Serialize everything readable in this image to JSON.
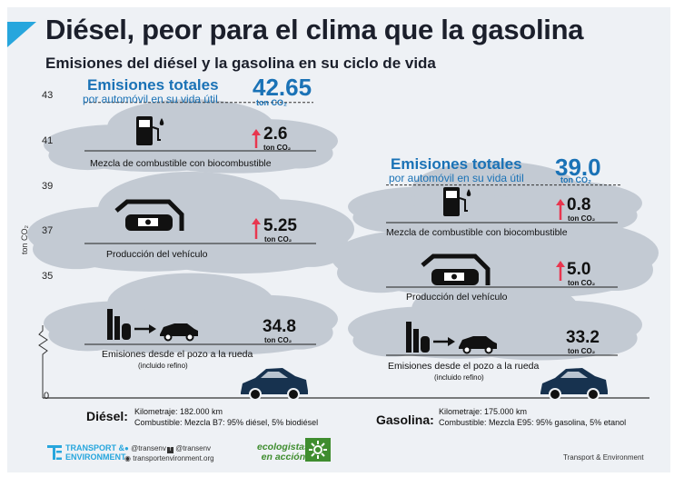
{
  "title": "Diésel, peor para el clima que la gasolina",
  "subtitle": "Emisiones del diésel y la gasolina en su ciclo de vida",
  "axis": {
    "label": "ton CO₂",
    "ticks": [
      "43",
      "41",
      "39",
      "37",
      "35",
      "0"
    ]
  },
  "diesel": {
    "total_heading": "Emisiones totales",
    "total_sub": "por automóvil en su vida útil",
    "total_value": "42.65",
    "total_unit": "ton CO₂",
    "fuel_label": "Diésel:",
    "mileage": "Kilometraje: 182.000 km",
    "fuel_mix": "Combustible: Mezcla B7: 95% diésel, 5% biodiésel",
    "components": [
      {
        "label": "Mezcla de combustible con biocombustible",
        "note": "",
        "value": "2.6",
        "unit": "ton CO₂"
      },
      {
        "label": "Producción del vehículo",
        "note": "",
        "value": "5.25",
        "unit": "ton CO₂"
      },
      {
        "label": "Emisiones desde el pozo a la rueda",
        "note": "(incluido refino)",
        "value": "34.8",
        "unit": "ton CO₂"
      }
    ]
  },
  "gasoline": {
    "total_heading": "Emisiones totales",
    "total_sub": "por automóvil en su vida útil",
    "total_value": "39.0",
    "total_unit": "ton CO₂",
    "fuel_label": "Gasolina:",
    "mileage": "Kilometraje: 175.000 km",
    "fuel_mix": "Combustible: Mezcla E95: 95% gasolina, 5% etanol",
    "components": [
      {
        "label": "Mezcla de combustible con biocombustible",
        "note": "",
        "value": "0.8",
        "unit": "ton CO₂"
      },
      {
        "label": "Producción del vehículo",
        "note": "",
        "value": "5.0",
        "unit": "ton CO₂"
      },
      {
        "label": "Emisiones desde el pozo a la rueda",
        "note": "(incluido refino)",
        "value": "33.2",
        "unit": "ton CO₂"
      }
    ]
  },
  "chart_data": {
    "type": "bar",
    "title": "Diésel, peor para el clima que la gasolina",
    "subtitle": "Emisiones del diésel y la gasolina en su ciclo de vida",
    "ylabel": "ton CO₂",
    "ylim": [
      0,
      43
    ],
    "axis_break": true,
    "stacked": true,
    "categories": [
      "Diésel",
      "Gasolina"
    ],
    "series": [
      {
        "name": "Emisiones desde el pozo a la rueda (incluido refino)",
        "values": [
          34.8,
          33.2
        ]
      },
      {
        "name": "Producción del vehículo",
        "values": [
          5.25,
          5.0
        ]
      },
      {
        "name": "Mezcla de combustible con biocombustible",
        "values": [
          2.6,
          0.8
        ]
      }
    ],
    "totals": [
      42.65,
      39.0
    ]
  },
  "colors": {
    "cloud": "#c3cad3",
    "accent_blue": "#1a72b6",
    "cyan": "#27a6dd",
    "arrow_red": "#e8364f",
    "car_blue": "#17324f",
    "eco_green": "#3f8d2f"
  },
  "footer": {
    "org_line1": "TRANSPORT &",
    "org_line2": "ENVIRONMENT",
    "twitter": "@transenv",
    "facebook": "@transenv",
    "website": "transportenvironment.org",
    "partner_line1": "ecologistas",
    "partner_line2": "en acción",
    "credit": "Transport & Environment"
  }
}
